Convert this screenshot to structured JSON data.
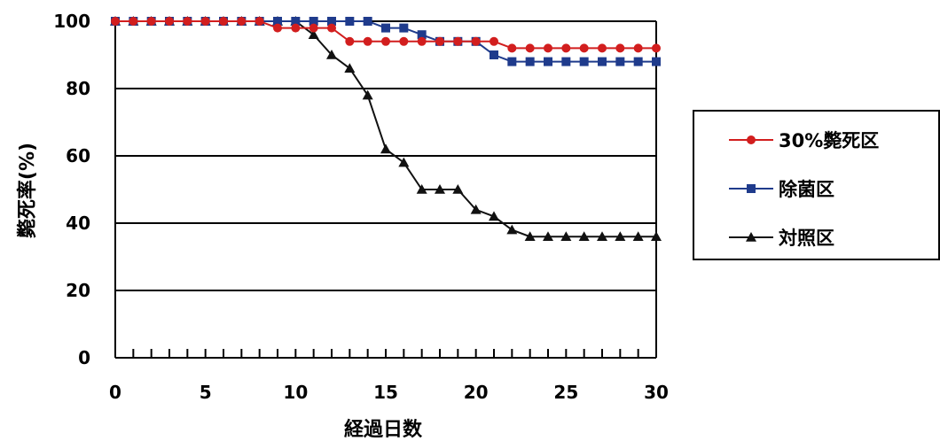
{
  "chart_data": {
    "type": "line",
    "xlabel": "経過日数",
    "ylabel": "斃死率(%)",
    "xlim": [
      0,
      30
    ],
    "ylim": [
      0,
      100
    ],
    "x_ticks": [
      0,
      5,
      10,
      15,
      20,
      25,
      30
    ],
    "y_ticks": [
      0,
      20,
      40,
      60,
      80,
      100
    ],
    "grid": "horizontal",
    "legend_position": "right",
    "x": [
      0,
      1,
      2,
      3,
      4,
      5,
      6,
      7,
      8,
      9,
      10,
      11,
      12,
      13,
      14,
      15,
      16,
      17,
      18,
      19,
      20,
      21,
      22,
      23,
      24,
      25,
      26,
      27,
      28,
      29,
      30
    ],
    "series": [
      {
        "name": "30%斃死区",
        "color": "#d21e1e",
        "marker": "circle",
        "values": [
          100,
          100,
          100,
          100,
          100,
          100,
          100,
          100,
          100,
          98,
          98,
          98,
          98,
          94,
          94,
          94,
          94,
          94,
          94,
          94,
          94,
          94,
          92,
          92,
          92,
          92,
          92,
          92,
          92,
          92,
          92
        ]
      },
      {
        "name": "除菌区",
        "color": "#1f3b8c",
        "marker": "square",
        "values": [
          100,
          100,
          100,
          100,
          100,
          100,
          100,
          100,
          100,
          100,
          100,
          100,
          100,
          100,
          100,
          98,
          98,
          96,
          94,
          94,
          94,
          90,
          88,
          88,
          88,
          88,
          88,
          88,
          88,
          88,
          88
        ]
      },
      {
        "name": "対照区",
        "color": "#111111",
        "marker": "triangle",
        "values": [
          100,
          100,
          100,
          100,
          100,
          100,
          100,
          100,
          100,
          100,
          100,
          96,
          90,
          86,
          78,
          62,
          58,
          50,
          50,
          50,
          44,
          42,
          38,
          36,
          36,
          36,
          36,
          36,
          36,
          36,
          36
        ]
      }
    ]
  }
}
